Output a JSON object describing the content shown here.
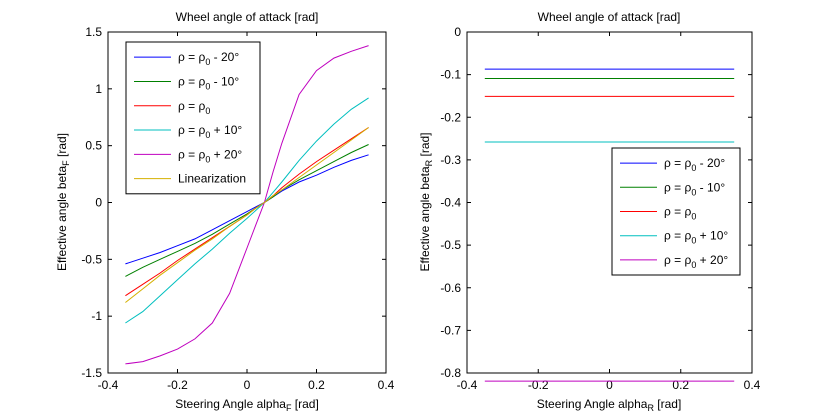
{
  "chart_data": [
    {
      "type": "line",
      "title": "Wheel angle of attack [rad]",
      "xlabel": "Steering Angle alpha",
      "xlabel_sub": "F",
      "xlabel_unit": " [rad]",
      "ylabel": "Effective angle beta",
      "ylabel_sub": "F",
      "ylabel_unit": " [rad]",
      "xlim": [
        -0.4,
        0.4
      ],
      "ylim": [
        -1.5,
        1.5
      ],
      "xticks": [
        "-0.4",
        "-0.2",
        "0",
        "0.2",
        "0.4"
      ],
      "yticks": [
        "-1.5",
        "-1",
        "-0.5",
        "0",
        "0.5",
        "1",
        "1.5"
      ],
      "legend_position": "top-left",
      "x": [
        -0.35,
        -0.3,
        -0.25,
        -0.2,
        -0.15,
        -0.1,
        -0.05,
        0.0,
        0.025,
        0.05,
        0.075,
        0.1,
        0.15,
        0.2,
        0.25,
        0.3,
        0.35
      ],
      "series": [
        {
          "name": "ρ = ρ₀ - 20°",
          "color": "#0000ff",
          "values": [
            -0.54,
            -0.49,
            -0.44,
            -0.38,
            -0.32,
            -0.24,
            -0.16,
            -0.08,
            -0.04,
            0.0,
            0.05,
            0.1,
            0.18,
            0.24,
            0.31,
            0.37,
            0.42
          ]
        },
        {
          "name": "ρ = ρ₀ - 10°",
          "color": "#008000",
          "values": [
            -0.65,
            -0.57,
            -0.5,
            -0.43,
            -0.36,
            -0.28,
            -0.19,
            -0.1,
            -0.05,
            0.0,
            0.05,
            0.11,
            0.2,
            0.28,
            0.36,
            0.44,
            0.51
          ]
        },
        {
          "name": "ρ = ρ₀",
          "color": "#ff0000",
          "values": [
            -0.82,
            -0.72,
            -0.62,
            -0.51,
            -0.41,
            -0.31,
            -0.21,
            -0.11,
            -0.05,
            0.0,
            0.06,
            0.13,
            0.25,
            0.36,
            0.46,
            0.56,
            0.66
          ]
        },
        {
          "name": "ρ = ρ₀ + 10°",
          "color": "#00bfbf",
          "values": [
            -1.06,
            -0.96,
            -0.82,
            -0.68,
            -0.54,
            -0.41,
            -0.27,
            -0.14,
            -0.07,
            0.0,
            0.09,
            0.18,
            0.37,
            0.54,
            0.69,
            0.82,
            0.92
          ]
        },
        {
          "name": "ρ = ρ₀ + 20°",
          "color": "#bf00bf",
          "values": [
            -1.42,
            -1.4,
            -1.35,
            -1.29,
            -1.2,
            -1.06,
            -0.8,
            -0.4,
            -0.2,
            0.0,
            0.27,
            0.52,
            0.95,
            1.16,
            1.27,
            1.33,
            1.38
          ]
        },
        {
          "name": "Linearization",
          "color": "#d4b000",
          "values": [
            -0.88,
            -0.76,
            -0.64,
            -0.53,
            -0.42,
            -0.32,
            -0.21,
            -0.11,
            -0.05,
            0.0,
            0.06,
            0.11,
            0.22,
            0.33,
            0.44,
            0.55,
            0.66
          ]
        }
      ]
    },
    {
      "type": "line",
      "title": "Wheel angle of attack [rad]",
      "xlabel": "Steering Angle alpha",
      "xlabel_sub": "R",
      "xlabel_unit": " [rad]",
      "ylabel": "Effective angle beta",
      "ylabel_sub": "R",
      "ylabel_unit": " [rad]",
      "xlim": [
        -0.4,
        0.4
      ],
      "ylim": [
        -0.8,
        0
      ],
      "xticks": [
        "-0.4",
        "-0.2",
        "0",
        "0.2",
        "0.4"
      ],
      "yticks": [
        "-0.8",
        "-0.7",
        "-0.6",
        "-0.5",
        "-0.4",
        "-0.3",
        "-0.2",
        "-0.1",
        "0"
      ],
      "legend_position": "right",
      "x": [
        -0.35,
        0.35
      ],
      "series": [
        {
          "name": "ρ = ρ₀ - 20°",
          "color": "#0000ff",
          "values": [
            -0.087,
            -0.087
          ]
        },
        {
          "name": "ρ = ρ₀ - 10°",
          "color": "#008000",
          "values": [
            -0.109,
            -0.109
          ]
        },
        {
          "name": "ρ = ρ₀",
          "color": "#ff0000",
          "values": [
            -0.151,
            -0.151
          ]
        },
        {
          "name": "ρ = ρ₀ + 10°",
          "color": "#00bfbf",
          "values": [
            -0.258,
            -0.258
          ]
        },
        {
          "name": "ρ = ρ₀ + 20°",
          "color": "#bf00bf",
          "values": [
            -0.819,
            -0.819
          ]
        }
      ]
    }
  ]
}
